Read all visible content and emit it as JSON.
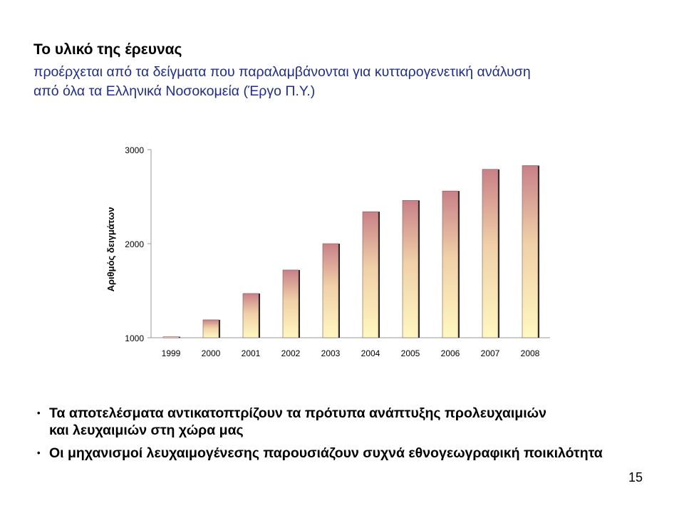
{
  "slide": {
    "heading": "Το υλικό της έρευνας",
    "subtitle_line1": "προέρχεται από τα δείγματα που παραλαμβάνονται για κυτταρογενετική ανάλυση",
    "subtitle_line2": "από όλα τα Ελληνικά Νοσοκομεία (Έργο Π.Υ.)",
    "bullets": [
      {
        "line1": "Τα αποτελέσματα αντικατοπτρίζουν τα πρότυπα ανάπτυξης προλευχαιμιών",
        "line2": "και λευχαιμιών στη χώρα μας"
      },
      {
        "line1": "Οι μηχανισμοί λευχαιμογένεσης παρουσιάζουν συχνά εθνογεωγραφική ποικιλότητα",
        "line2": ""
      }
    ],
    "page_number": "15"
  },
  "chart_data": {
    "type": "bar",
    "title": "",
    "xlabel": "",
    "ylabel": "Αριθμός δειγμάτων",
    "categories": [
      "1999",
      "2000",
      "2001",
      "2002",
      "2003",
      "2004",
      "2005",
      "2006",
      "2007",
      "2008"
    ],
    "values": [
      1010,
      1190,
      1470,
      1720,
      2000,
      2340,
      2460,
      2560,
      2790,
      2830
    ],
    "ylim": [
      1000,
      3000
    ],
    "yticks": [
      "1000",
      "2000",
      "3000"
    ],
    "grid": false,
    "legend": "none",
    "colors": {
      "bar_top": "#c88088",
      "bar_mid": "#f0d0a8",
      "bar_bottom": "#fff8c0",
      "bar_edge": "#222222",
      "axis": "#999999"
    }
  }
}
